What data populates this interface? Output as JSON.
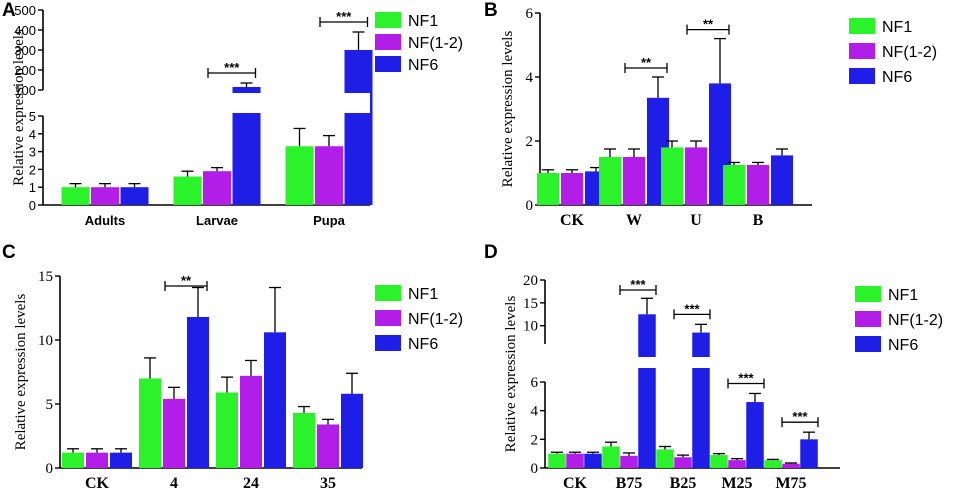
{
  "colors": {
    "NF1": "#2bf22b",
    "NF(1-2)": "#b21ee8",
    "NF6": "#1e1ee6",
    "error": "#000000"
  },
  "chart_data": [
    {
      "id": "A",
      "panel_label": "A",
      "type": "bar",
      "title": "",
      "ylabel": "Relative expression levels",
      "xlabel": "",
      "categories": [
        "Adults",
        "Larvae",
        "Pupa"
      ],
      "legend": [
        "NF1",
        "NF(1-2)",
        "NF6"
      ],
      "series": [
        {
          "name": "NF1",
          "values": [
            1.0,
            1.6,
            3.3
          ],
          "errors": [
            0.2,
            0.3,
            1.0
          ]
        },
        {
          "name": "NF(1-2)",
          "values": [
            1.0,
            1.9,
            3.3
          ],
          "errors": [
            0.2,
            0.2,
            0.6
          ]
        },
        {
          "name": "NF6",
          "values": [
            1.0,
            115,
            300
          ],
          "errors": [
            0.2,
            20,
            90
          ]
        }
      ],
      "axis_break": {
        "lower_range": [
          0,
          5
        ],
        "upper_range": [
          100,
          500
        ]
      },
      "ticks_lower": [
        "0",
        "1",
        "2",
        "3",
        "4",
        "5"
      ],
      "ticks_upper": [
        "100",
        "200",
        "300",
        "400",
        "500"
      ],
      "significance": [
        {
          "category": 1,
          "label": "***"
        },
        {
          "category": 2,
          "label": "***"
        }
      ]
    },
    {
      "id": "B",
      "panel_label": "B",
      "type": "bar",
      "title": "",
      "ylabel": "Relative expression levels",
      "xlabel": "",
      "categories": [
        "CK",
        "W",
        "U",
        "B"
      ],
      "legend": [
        "NF1",
        "NF(1-2)",
        "NF6"
      ],
      "series": [
        {
          "name": "NF1",
          "values": [
            1.0,
            1.5,
            1.8,
            1.25
          ],
          "errors": [
            0.1,
            0.25,
            0.2,
            0.08
          ]
        },
        {
          "name": "NF(1-2)",
          "values": [
            1.0,
            1.5,
            1.8,
            1.25
          ],
          "errors": [
            0.1,
            0.25,
            0.2,
            0.08
          ]
        },
        {
          "name": "NF6",
          "values": [
            1.05,
            3.35,
            3.8,
            1.55
          ],
          "errors": [
            0.12,
            0.65,
            1.4,
            0.2
          ]
        }
      ],
      "ylim": [
        0,
        6
      ],
      "ticks": [
        "0",
        "2",
        "4",
        "6"
      ],
      "significance": [
        {
          "category": 1,
          "label": "**"
        },
        {
          "category": 2,
          "label": "**"
        }
      ]
    },
    {
      "id": "C",
      "panel_label": "C",
      "type": "bar",
      "title": "",
      "ylabel": "Relative expression levels",
      "xlabel": "",
      "categories": [
        "CK",
        "4",
        "24",
        "35"
      ],
      "legend": [
        "NF1",
        "NF(1-2)",
        "NF6"
      ],
      "series": [
        {
          "name": "NF1",
          "values": [
            1.2,
            7.0,
            5.9,
            4.3
          ],
          "errors": [
            0.3,
            1.6,
            1.2,
            0.5
          ]
        },
        {
          "name": "NF(1-2)",
          "values": [
            1.2,
            5.4,
            7.2,
            3.4
          ],
          "errors": [
            0.3,
            0.9,
            1.2,
            0.4
          ]
        },
        {
          "name": "NF6",
          "values": [
            1.2,
            11.8,
            10.6,
            5.8
          ],
          "errors": [
            0.3,
            2.3,
            3.5,
            1.6
          ]
        }
      ],
      "ylim": [
        0,
        15
      ],
      "ticks": [
        "0",
        "5",
        "10",
        "15"
      ],
      "significance": [
        {
          "category": 1,
          "label": "**"
        }
      ]
    },
    {
      "id": "D",
      "panel_label": "D",
      "type": "bar",
      "title": "",
      "ylabel": "Relative expression levels",
      "xlabel": "",
      "categories": [
        "CK",
        "B75",
        "B25",
        "M25",
        "M75"
      ],
      "legend": [
        "NF1",
        "NF(1-2)",
        "NF6"
      ],
      "series": [
        {
          "name": "NF1",
          "values": [
            1.0,
            1.5,
            1.3,
            0.9,
            0.55
          ],
          "errors": [
            0.1,
            0.3,
            0.2,
            0.1,
            0.05
          ]
        },
        {
          "name": "NF(1-2)",
          "values": [
            1.0,
            0.85,
            0.75,
            0.55,
            0.3
          ],
          "errors": [
            0.1,
            0.2,
            0.15,
            0.1,
            0.05
          ]
        },
        {
          "name": "NF6",
          "values": [
            1.0,
            12.5,
            8.5,
            4.6,
            2.0
          ],
          "errors": [
            0.1,
            3.5,
            1.8,
            0.6,
            0.5
          ]
        }
      ],
      "axis_break": {
        "lower_range": [
          0,
          6
        ],
        "upper_range": [
          6,
          20
        ]
      },
      "ticks_lower": [
        "0",
        "2",
        "4",
        "6"
      ],
      "ticks_upper": [
        "10",
        "15",
        "20"
      ],
      "significance": [
        {
          "category": 1,
          "label": "***"
        },
        {
          "category": 2,
          "label": "***"
        },
        {
          "category": 3,
          "label": "***"
        },
        {
          "category": 4,
          "label": "***"
        }
      ]
    }
  ]
}
